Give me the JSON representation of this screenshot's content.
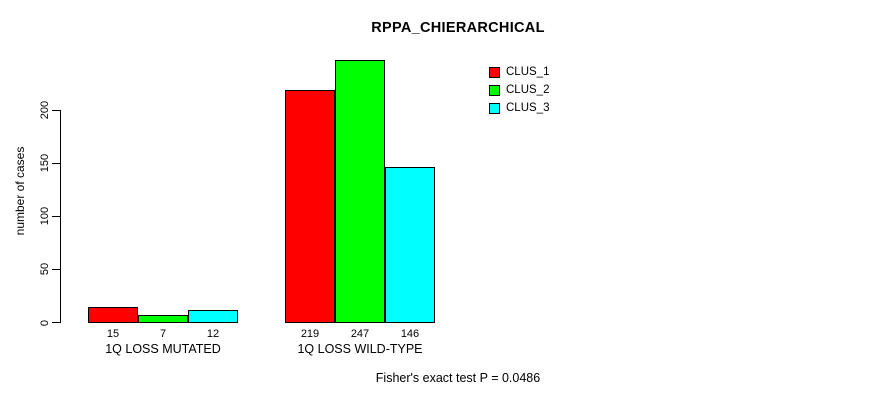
{
  "chart_data": {
    "type": "bar",
    "title": "RPPA_CHIERARCHICAL",
    "xlabel": "",
    "ylabel": "number of cases",
    "categories": [
      "1Q LOSS MUTATED",
      "1Q LOSS WILD-TYPE"
    ],
    "series": [
      {
        "name": "CLUS_1",
        "color": "#ff0000",
        "values": [
          15,
          219
        ]
      },
      {
        "name": "CLUS_2",
        "color": "#00ff00",
        "values": [
          7,
          247
        ]
      },
      {
        "name": "CLUS_3",
        "color": "#00ffff",
        "values": [
          12,
          146
        ]
      }
    ],
    "yticks": [
      0,
      50,
      100,
      150,
      200
    ],
    "ylim": [
      0,
      250
    ],
    "grid": false,
    "legend_position": "top-right",
    "bar_outline_color": "#000000",
    "axis_color": "#000000",
    "value_labels_shown": true
  },
  "annotations": {
    "footer": "Fisher's exact test P = 0.0486"
  }
}
